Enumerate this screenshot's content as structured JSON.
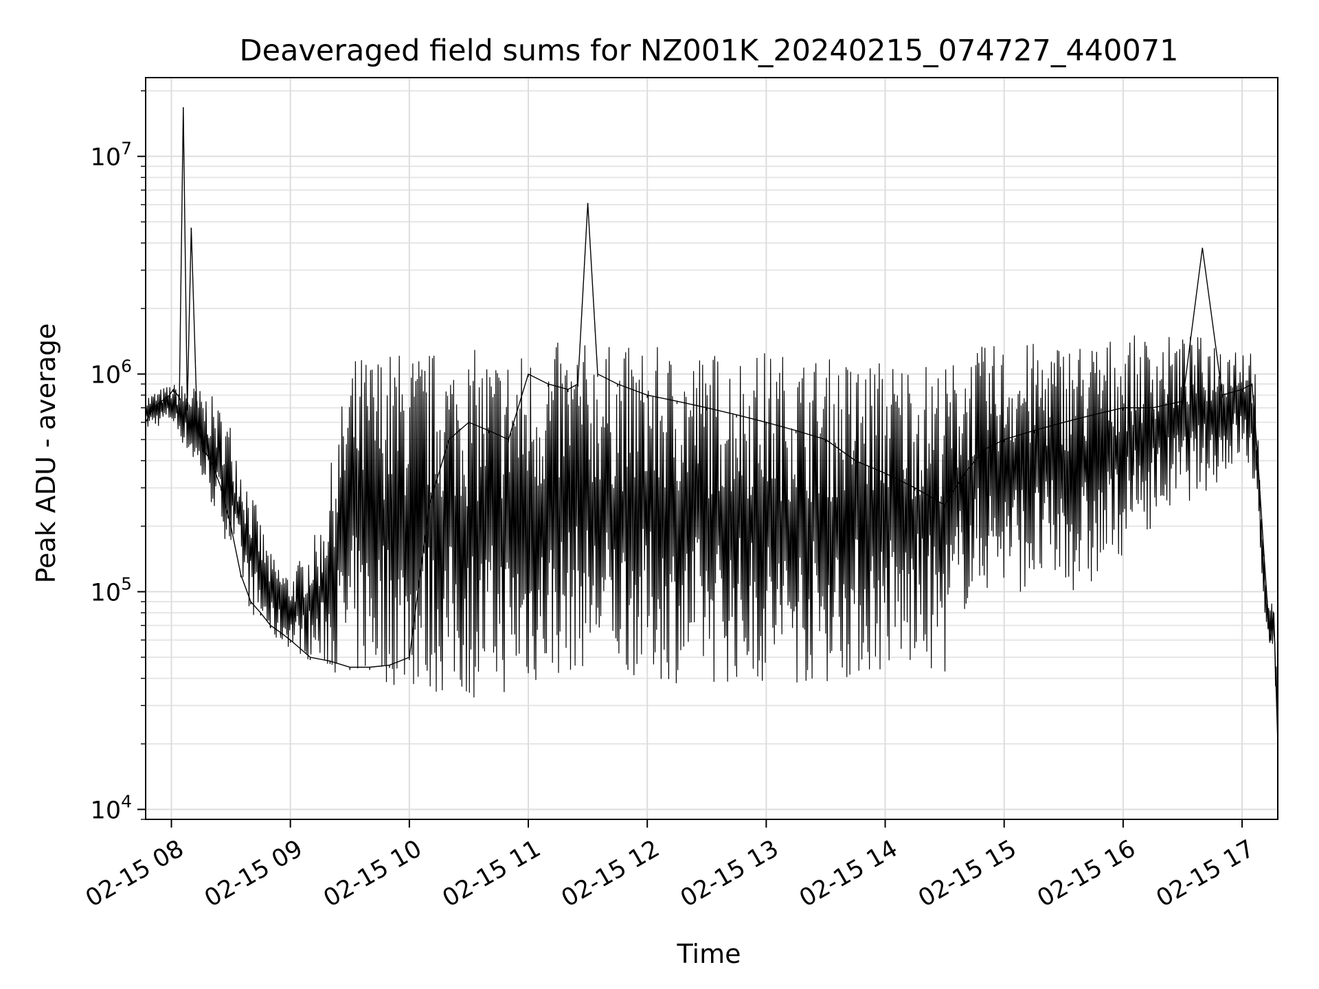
{
  "chart_data": {
    "type": "line",
    "title": "Deaveraged field sums for NZ001K_20240215_074727_440071",
    "xlabel": "Time",
    "ylabel": "Peak ADU - average",
    "yscale": "log",
    "ylim": [
      9000,
      23000000
    ],
    "xlim": [
      "2024-02-15 07:47",
      "2024-02-15 17:18"
    ],
    "grid": true,
    "grid_minor": true,
    "line_color": "#000000",
    "x_ticks": [
      {
        "value": "2024-02-15 08:00",
        "label": "02-15 08"
      },
      {
        "value": "2024-02-15 09:00",
        "label": "02-15 09"
      },
      {
        "value": "2024-02-15 10:00",
        "label": "02-15 10"
      },
      {
        "value": "2024-02-15 11:00",
        "label": "02-15 11"
      },
      {
        "value": "2024-02-15 12:00",
        "label": "02-15 12"
      },
      {
        "value": "2024-02-15 13:00",
        "label": "02-15 13"
      },
      {
        "value": "2024-02-15 14:00",
        "label": "02-15 14"
      },
      {
        "value": "2024-02-15 15:00",
        "label": "02-15 15"
      },
      {
        "value": "2024-02-15 16:00",
        "label": "02-15 16"
      },
      {
        "value": "2024-02-15 17:00",
        "label": "02-15 17"
      }
    ],
    "y_ticks": [
      {
        "value": 10000,
        "base": "10",
        "exp": "4"
      },
      {
        "value": 100000,
        "base": "10",
        "exp": "5"
      },
      {
        "value": 1000000,
        "base": "10",
        "exp": "6"
      },
      {
        "value": 10000000,
        "base": "10",
        "exp": "7"
      }
    ],
    "series": [
      {
        "name": "",
        "x": [
          "2024-02-15 07:47",
          "2024-02-15 07:51",
          "2024-02-15 07:55",
          "2024-02-15 07:59",
          "2024-02-15 08:01",
          "2024-02-15 08:04",
          "2024-02-15 08:06",
          "2024-02-15 08:08",
          "2024-02-15 08:10",
          "2024-02-15 08:13",
          "2024-02-15 08:16",
          "2024-02-15 08:20",
          "2024-02-15 08:25",
          "2024-02-15 08:30",
          "2024-02-15 08:35",
          "2024-02-15 08:40",
          "2024-02-15 08:45",
          "2024-02-15 08:50",
          "2024-02-15 08:55",
          "2024-02-15 09:00",
          "2024-02-15 09:10",
          "2024-02-15 09:20",
          "2024-02-15 09:30",
          "2024-02-15 09:40",
          "2024-02-15 09:50",
          "2024-02-15 10:00",
          "2024-02-15 10:10",
          "2024-02-15 10:20",
          "2024-02-15 10:30",
          "2024-02-15 10:40",
          "2024-02-15 10:50",
          "2024-02-15 11:00",
          "2024-02-15 11:10",
          "2024-02-15 11:20",
          "2024-02-15 11:25",
          "2024-02-15 11:30",
          "2024-02-15 11:35",
          "2024-02-15 11:45",
          "2024-02-15 12:00",
          "2024-02-15 12:15",
          "2024-02-15 12:30",
          "2024-02-15 12:45",
          "2024-02-15 13:00",
          "2024-02-15 13:15",
          "2024-02-15 13:30",
          "2024-02-15 13:45",
          "2024-02-15 14:00",
          "2024-02-15 14:15",
          "2024-02-15 14:30",
          "2024-02-15 14:40",
          "2024-02-15 14:50",
          "2024-02-15 15:00",
          "2024-02-15 15:15",
          "2024-02-15 15:30",
          "2024-02-15 15:45",
          "2024-02-15 16:00",
          "2024-02-15 16:15",
          "2024-02-15 16:30",
          "2024-02-15 16:40",
          "2024-02-15 16:50",
          "2024-02-15 17:00",
          "2024-02-15 17:05",
          "2024-02-15 17:08",
          "2024-02-15 17:11",
          "2024-02-15 17:14",
          "2024-02-15 17:16",
          "2024-02-15 17:18"
        ],
        "y": [
          600000,
          700000,
          750000,
          800000,
          850000,
          780000,
          16800000,
          700000,
          4700000,
          600000,
          450000,
          400000,
          300000,
          200000,
          120000,
          90000,
          80000,
          70000,
          65000,
          60000,
          50000,
          48000,
          45000,
          45000,
          46000,
          50000,
          250000,
          500000,
          600000,
          550000,
          500000,
          1000000,
          900000,
          850000,
          900000,
          6100000,
          1000000,
          900000,
          800000,
          750000,
          700000,
          650000,
          600000,
          550000,
          500000,
          400000,
          350000,
          300000,
          250000,
          350000,
          450000,
          500000,
          550000,
          600000,
          650000,
          700000,
          700000,
          750000,
          3800000,
          800000,
          850000,
          900000,
          400000,
          150000,
          60000,
          80000,
          20000
        ]
      }
    ],
    "band": {
      "x": [
        "2024-02-15 07:47",
        "2024-02-15 08:00",
        "2024-02-15 08:10",
        "2024-02-15 08:20",
        "2024-02-15 08:30",
        "2024-02-15 08:40",
        "2024-02-15 08:50",
        "2024-02-15 09:00",
        "2024-02-15 09:15",
        "2024-02-15 09:30",
        "2024-02-15 09:45",
        "2024-02-15 10:00",
        "2024-02-15 10:15",
        "2024-02-15 10:30",
        "2024-02-15 10:45",
        "2024-02-15 11:00",
        "2024-02-15 11:15",
        "2024-02-15 11:30",
        "2024-02-15 11:45",
        "2024-02-15 12:00",
        "2024-02-15 12:15",
        "2024-02-15 12:30",
        "2024-02-15 12:45",
        "2024-02-15 13:00",
        "2024-02-15 13:15",
        "2024-02-15 13:30",
        "2024-02-15 13:45",
        "2024-02-15 14:00",
        "2024-02-15 14:15",
        "2024-02-15 14:30",
        "2024-02-15 14:40",
        "2024-02-15 14:50",
        "2024-02-15 15:00",
        "2024-02-15 15:15",
        "2024-02-15 15:30",
        "2024-02-15 15:45",
        "2024-02-15 16:00",
        "2024-02-15 16:15",
        "2024-02-15 16:30",
        "2024-02-15 16:45",
        "2024-02-15 17:00",
        "2024-02-15 17:06",
        "2024-02-15 17:10",
        "2024-02-15 17:13",
        "2024-02-15 17:16",
        "2024-02-15 17:18"
      ],
      "low": [
        550000,
        600000,
        400000,
        250000,
        150000,
        80000,
        60000,
        55000,
        45000,
        40000,
        38000,
        35000,
        33000,
        32000,
        33000,
        35000,
        40000,
        45000,
        42000,
        40000,
        38000,
        38000,
        38000,
        37000,
        37000,
        38000,
        40000,
        42000,
        42000,
        42000,
        80000,
        100000,
        100000,
        100000,
        100000,
        100000,
        150000,
        200000,
        250000,
        300000,
        400000,
        300000,
        100000,
        60000,
        55000,
        20000
      ],
      "high": [
        800000,
        900000,
        900000,
        800000,
        600000,
        300000,
        150000,
        120000,
        200000,
        1200000,
        1300000,
        1300000,
        1300000,
        1300000,
        1300000,
        1300000,
        1400000,
        1400000,
        1350000,
        1350000,
        1300000,
        1300000,
        1300000,
        1300000,
        1250000,
        1200000,
        1200000,
        1200000,
        1200000,
        1100000,
        1300000,
        1350000,
        1400000,
        1400000,
        1450000,
        1450000,
        1500000,
        1500000,
        1500000,
        1500000,
        1450000,
        1400000,
        200000,
        100000,
        90000,
        30000
      ]
    }
  }
}
